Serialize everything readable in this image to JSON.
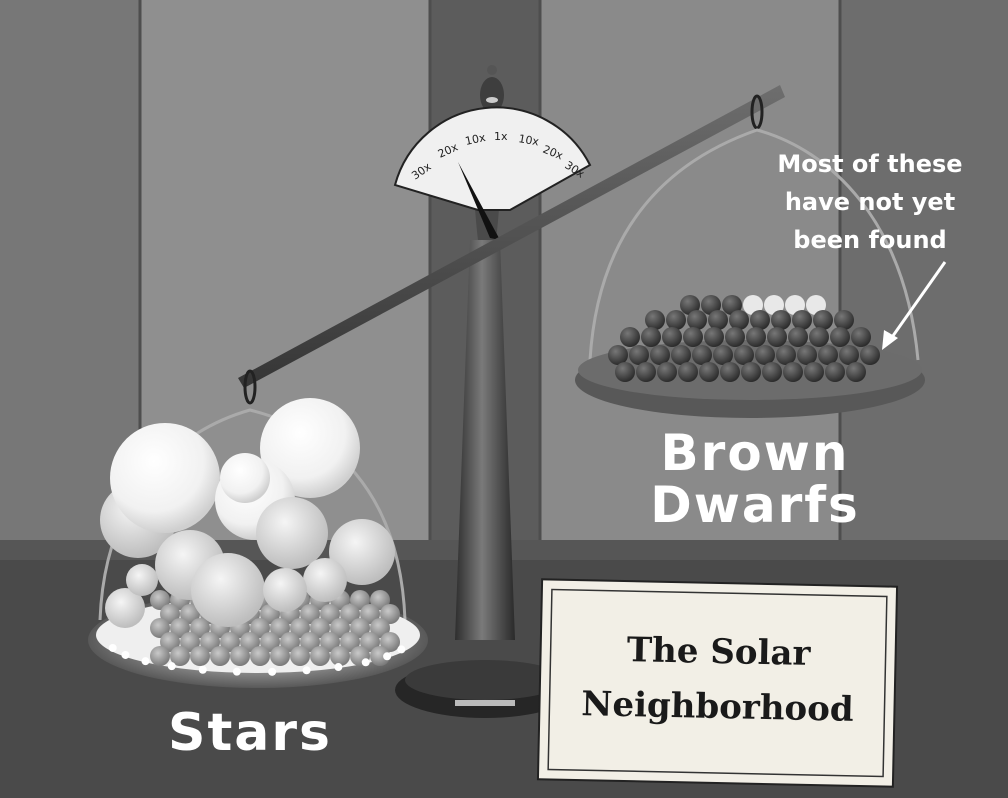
{
  "scene": {
    "dial_ticks": [
      "30x",
      "20x",
      "10x",
      "1x",
      "10x",
      "20x",
      "30x"
    ]
  },
  "labels": {
    "stars": "Stars",
    "brown_dwarfs_line1": "Brown",
    "brown_dwarfs_line2": "Dwarfs",
    "annotation_line1": "Most of these",
    "annotation_line2": "have not yet",
    "annotation_line3": "been found"
  },
  "sign": {
    "line1": "The Solar",
    "line2": "Neighborhood"
  },
  "colors": {
    "background": "#5a5a5a",
    "wall_light": "#8c8c8c",
    "label_text": "#ffffff",
    "sign_bg": "#f2efe6"
  }
}
